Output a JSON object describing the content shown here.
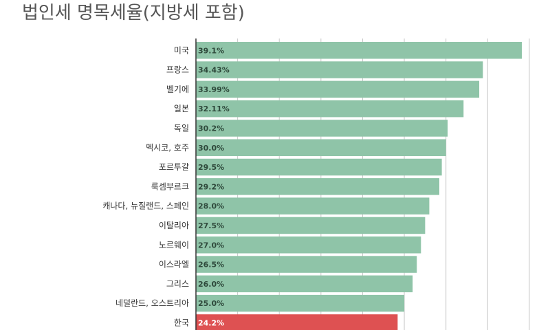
{
  "chart_data": {
    "type": "bar",
    "orientation": "horizontal",
    "title": "법인세 명목세율(지방세 포함)",
    "xlabel": "",
    "ylabel": "",
    "xlim": [
      0,
      40
    ],
    "grid": true,
    "legend": "none",
    "categories": [
      "미국",
      "프랑스",
      "벨기에",
      "일본",
      "독일",
      "멕시코, 호주",
      "포르투갈",
      "룩셈부르크",
      "캐나다, 뉴질랜드, 스페인",
      "이탈리아",
      "노르웨이",
      "이스라엘",
      "그리스",
      "네덜란드, 오스트리아",
      "한국"
    ],
    "values": [
      39.1,
      34.43,
      33.99,
      32.11,
      30.2,
      30.0,
      29.5,
      29.2,
      28.0,
      27.5,
      27.0,
      26.5,
      26.0,
      25.0,
      24.2
    ],
    "value_labels": [
      "39.1%",
      "34.43%",
      "33.99%",
      "32.11%",
      "30.2%",
      "30.0%",
      "29.5%",
      "29.2%",
      "28.0%",
      "27.5%",
      "27.0%",
      "26.5%",
      "26.0%",
      "25.0%",
      "24.2%"
    ],
    "highlight_category": "한국",
    "colors": {
      "bar": "#8fc4a8",
      "highlight": "#de5152",
      "label_dark": "#2f4a3c",
      "label_light": "#ffffff",
      "grid": "#c8c8c8",
      "axis": "#333333"
    }
  }
}
